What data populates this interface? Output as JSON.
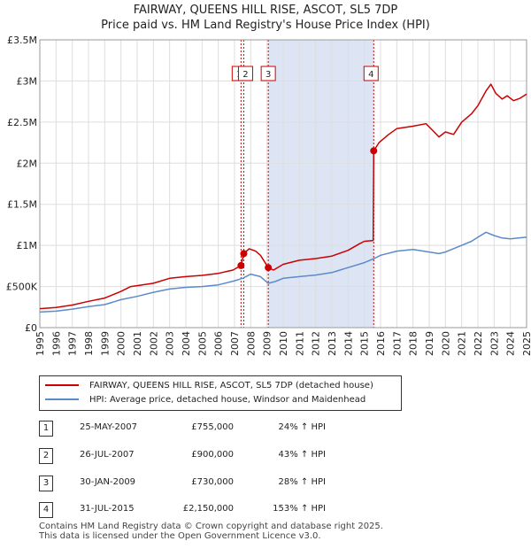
{
  "title": "FAIRWAY, QUEENS HILL RISE, ASCOT, SL5 7DP",
  "subtitle": "Price paid vs. HM Land Registry's House Price Index (HPI)",
  "colors": {
    "property": "#cc0000",
    "hpi": "#5b8bc9",
    "shade": "#dde5f5",
    "grid": "#dddddd",
    "marker": "#cc0000"
  },
  "legend": {
    "property_label": "FAIRWAY, QUEENS HILL RISE, ASCOT, SL5 7DP (detached house)",
    "hpi_label": "HPI: Average price, detached house, Windsor and Maidenhead"
  },
  "sales": [
    {
      "num": "1",
      "date": "25-MAY-2007",
      "price": "£755,000",
      "hpi": "24% ↑ HPI"
    },
    {
      "num": "2",
      "date": "26-JUL-2007",
      "price": "£900,000",
      "hpi": "43% ↑ HPI"
    },
    {
      "num": "3",
      "date": "30-JAN-2009",
      "price": "£730,000",
      "hpi": "28% ↑ HPI"
    },
    {
      "num": "4",
      "date": "31-JUL-2015",
      "price": "£2,150,000",
      "hpi": "153% ↑ HPI"
    }
  ],
  "footer": {
    "line1": "Contains HM Land Registry data © Crown copyright and database right 2025.",
    "line2": "This data is licensed under the Open Government Licence v3.0."
  },
  "chart_data": {
    "type": "line",
    "title": "FAIRWAY, QUEENS HILL RISE, ASCOT, SL5 7DP",
    "subtitle": "Price paid vs. HM Land Registry's House Price Index (HPI)",
    "xlim": [
      1995,
      2025
    ],
    "ylim": [
      0,
      3500000
    ],
    "x_ticks": [
      "1995",
      "1996",
      "1997",
      "1998",
      "1999",
      "2000",
      "2001",
      "2002",
      "2003",
      "2004",
      "2005",
      "2006",
      "2007",
      "2008",
      "2009",
      "2010",
      "2011",
      "2012",
      "2013",
      "2014",
      "2015",
      "2016",
      "2017",
      "2018",
      "2019",
      "2020",
      "2021",
      "2022",
      "2023",
      "2024",
      "2025"
    ],
    "y_ticks": [
      {
        "value": 0,
        "label": "£0"
      },
      {
        "value": 500000,
        "label": "£500K"
      },
      {
        "value": 1000000,
        "label": "£1M"
      },
      {
        "value": 1500000,
        "label": "£1.5M"
      },
      {
        "value": 2000000,
        "label": "£2M"
      },
      {
        "value": 2500000,
        "label": "£2.5M"
      },
      {
        "value": 3000000,
        "label": "£3M"
      },
      {
        "value": 3500000,
        "label": "£3.5M"
      }
    ],
    "grid": true,
    "shaded_region": [
      2009.08,
      2015.58
    ],
    "sale_markers": [
      {
        "label": "1",
        "x": 2007.4,
        "y": 755000
      },
      {
        "label": "2",
        "x": 2007.57,
        "y": 900000
      },
      {
        "label": "3",
        "x": 2009.08,
        "y": 730000
      },
      {
        "label": "4",
        "x": 2015.58,
        "y": 2150000
      }
    ],
    "series": [
      {
        "name": "FAIRWAY, QUEENS HILL RISE, ASCOT, SL5 7DP (detached house)",
        "color": "#cc0000",
        "points": [
          [
            1995.0,
            230000
          ],
          [
            1996.0,
            245000
          ],
          [
            1997.0,
            275000
          ],
          [
            1998.0,
            320000
          ],
          [
            1999.0,
            360000
          ],
          [
            2000.0,
            440000
          ],
          [
            2000.6,
            500000
          ],
          [
            2001.0,
            510000
          ],
          [
            2002.0,
            540000
          ],
          [
            2003.0,
            600000
          ],
          [
            2004.0,
            620000
          ],
          [
            2005.0,
            635000
          ],
          [
            2006.0,
            660000
          ],
          [
            2006.9,
            700000
          ],
          [
            2007.4,
            755000
          ],
          [
            2007.57,
            900000
          ],
          [
            2007.9,
            960000
          ],
          [
            2008.3,
            930000
          ],
          [
            2008.6,
            880000
          ],
          [
            2009.08,
            730000
          ],
          [
            2009.4,
            700000
          ],
          [
            2010.0,
            770000
          ],
          [
            2011.0,
            820000
          ],
          [
            2012.0,
            840000
          ],
          [
            2013.0,
            870000
          ],
          [
            2014.0,
            940000
          ],
          [
            2014.7,
            1020000
          ],
          [
            2015.0,
            1050000
          ],
          [
            2015.55,
            1060000
          ],
          [
            2015.58,
            2150000
          ],
          [
            2015.9,
            2250000
          ],
          [
            2016.5,
            2350000
          ],
          [
            2017.0,
            2420000
          ],
          [
            2018.0,
            2450000
          ],
          [
            2018.8,
            2480000
          ],
          [
            2019.2,
            2400000
          ],
          [
            2019.6,
            2320000
          ],
          [
            2020.0,
            2380000
          ],
          [
            2020.5,
            2350000
          ],
          [
            2021.0,
            2500000
          ],
          [
            2021.6,
            2600000
          ],
          [
            2022.0,
            2700000
          ],
          [
            2022.5,
            2880000
          ],
          [
            2022.8,
            2960000
          ],
          [
            2023.1,
            2850000
          ],
          [
            2023.5,
            2780000
          ],
          [
            2023.8,
            2820000
          ],
          [
            2024.2,
            2760000
          ],
          [
            2024.6,
            2790000
          ],
          [
            2025.0,
            2840000
          ]
        ]
      },
      {
        "name": "HPI: Average price, detached house, Windsor and Maidenhead",
        "color": "#5b8bc9",
        "points": [
          [
            1995.0,
            190000
          ],
          [
            1996.0,
            200000
          ],
          [
            1997.0,
            225000
          ],
          [
            1998.0,
            255000
          ],
          [
            1999.0,
            280000
          ],
          [
            2000.0,
            340000
          ],
          [
            2001.0,
            380000
          ],
          [
            2002.0,
            430000
          ],
          [
            2003.0,
            470000
          ],
          [
            2004.0,
            490000
          ],
          [
            2005.0,
            500000
          ],
          [
            2006.0,
            520000
          ],
          [
            2007.0,
            570000
          ],
          [
            2007.5,
            600000
          ],
          [
            2008.0,
            650000
          ],
          [
            2008.6,
            620000
          ],
          [
            2009.08,
            540000
          ],
          [
            2009.5,
            560000
          ],
          [
            2010.0,
            600000
          ],
          [
            2011.0,
            620000
          ],
          [
            2012.0,
            640000
          ],
          [
            2013.0,
            670000
          ],
          [
            2014.0,
            730000
          ],
          [
            2015.0,
            790000
          ],
          [
            2015.6,
            840000
          ],
          [
            2016.0,
            880000
          ],
          [
            2017.0,
            930000
          ],
          [
            2018.0,
            950000
          ],
          [
            2019.0,
            920000
          ],
          [
            2019.6,
            900000
          ],
          [
            2020.0,
            920000
          ],
          [
            2021.0,
            1000000
          ],
          [
            2021.6,
            1050000
          ],
          [
            2022.0,
            1100000
          ],
          [
            2022.5,
            1160000
          ],
          [
            2023.0,
            1120000
          ],
          [
            2023.5,
            1090000
          ],
          [
            2024.0,
            1080000
          ],
          [
            2024.5,
            1090000
          ],
          [
            2025.0,
            1100000
          ]
        ]
      }
    ]
  }
}
